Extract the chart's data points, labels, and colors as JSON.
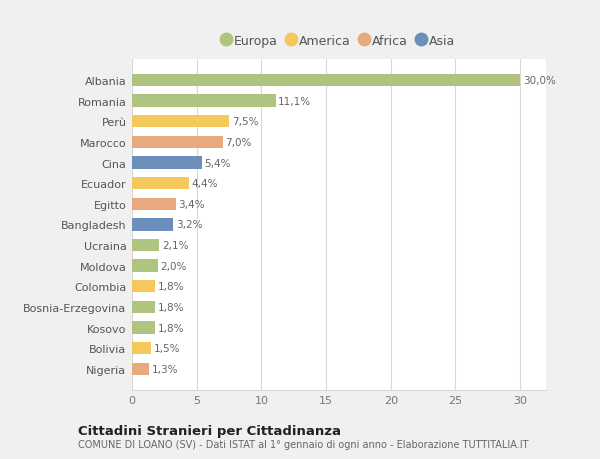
{
  "countries": [
    "Nigeria",
    "Bolivia",
    "Kosovo",
    "Bosnia-Erzegovina",
    "Colombia",
    "Moldova",
    "Ucraina",
    "Bangladesh",
    "Egitto",
    "Ecuador",
    "Cina",
    "Marocco",
    "Perù",
    "Romania",
    "Albania"
  ],
  "values": [
    1.3,
    1.5,
    1.8,
    1.8,
    1.8,
    2.0,
    2.1,
    3.2,
    3.4,
    4.4,
    5.4,
    7.0,
    7.5,
    11.1,
    30.0
  ],
  "labels": [
    "1,3%",
    "1,5%",
    "1,8%",
    "1,8%",
    "1,8%",
    "2,0%",
    "2,1%",
    "3,2%",
    "3,4%",
    "4,4%",
    "5,4%",
    "7,0%",
    "7,5%",
    "11,1%",
    "30,0%"
  ],
  "colors": [
    "#e8a97e",
    "#f5c85c",
    "#aec47f",
    "#aec47f",
    "#f5c85c",
    "#aec47f",
    "#aec47f",
    "#6b8eba",
    "#e8a97e",
    "#f5c85c",
    "#6b8eba",
    "#e8a97e",
    "#f5c85c",
    "#aec47f",
    "#aec47f"
  ],
  "legend_labels": [
    "Europa",
    "America",
    "Africa",
    "Asia"
  ],
  "legend_colors": [
    "#aec47f",
    "#f5c85c",
    "#e8a97e",
    "#6b8eba"
  ],
  "xlim": [
    0,
    32
  ],
  "xticks": [
    0,
    5,
    10,
    15,
    20,
    25,
    30
  ],
  "title": "Cittadini Stranieri per Cittadinanza",
  "subtitle": "COMUNE DI LOANO (SV) - Dati ISTAT al 1° gennaio di ogni anno - Elaborazione TUTTITALIA.IT",
  "bg_color": "#f0f0f0",
  "bar_area_color": "#ffffff",
  "grid_color": "#d8d8d8",
  "label_color": "#777777",
  "bar_label_color": "#666666"
}
